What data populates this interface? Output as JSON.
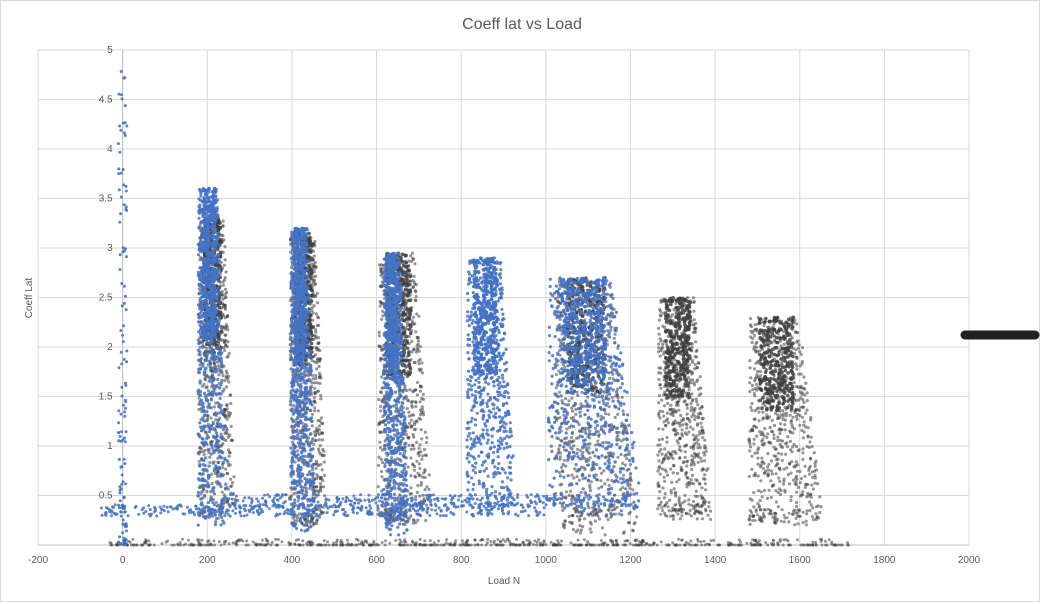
{
  "chart_data": {
    "type": "scatter",
    "title": "Coeff lat vs Load",
    "xlabel": "Load N",
    "ylabel": "Coeff Lat",
    "xlim": [
      -200,
      2000
    ],
    "ylim": [
      0,
      5
    ],
    "xticks": [
      "-200",
      "0",
      "200",
      "400",
      "600",
      "800",
      "1000",
      "1200",
      "1400",
      "1600",
      "1800",
      "2000"
    ],
    "yticks": [
      "0.5",
      "1",
      "1.5",
      "2",
      "2.5",
      "3",
      "3.5",
      "4",
      "4.5",
      "5"
    ],
    "grid": true,
    "legend": "right",
    "series": [
      {
        "color": "#404040",
        "opacity": 0.55,
        "clusters": [
          {
            "x": [
              170,
              260
            ],
            "y": [
              0.25,
              3.3
            ],
            "dense": [
              0.1,
              0.6
            ]
          },
          {
            "x": [
              385,
              475
            ],
            "y": [
              0.2,
              3.15
            ],
            "dense": [
              0.1,
              0.55
            ]
          },
          {
            "x": [
              590,
              720
            ],
            "y": [
              0.2,
              2.95
            ],
            "dense": [
              0.15,
              0.6
            ]
          },
          {
            "x": [
              1000,
              1200
            ],
            "y": [
              0.1,
              2.7
            ],
            "dense": [
              0.1,
              0.55
            ]
          },
          {
            "x": [
              1250,
              1380
            ],
            "y": [
              0.25,
              2.5
            ],
            "dense": [
              0.0,
              0.2
            ]
          },
          {
            "x": [
              1460,
              1640
            ],
            "y": [
              0.2,
              2.3
            ],
            "dense": [
              0.0,
              0.2
            ]
          }
        ],
        "bands": [
          {
            "x": [
              -30,
              1720
            ],
            "y": 0.0
          },
          {
            "x": [
              1060,
              1170
            ],
            "y": 0.35
          },
          {
            "x": [
              1270,
              1370
            ],
            "y": 0.35
          },
          {
            "x": [
              1480,
              1600
            ],
            "y": 0.3
          },
          {
            "x": [
              400,
              460
            ],
            "y": 0.25
          },
          {
            "x": [
              610,
              680
            ],
            "y": 0.3
          }
        ]
      },
      {
        "color": "#4472c4",
        "opacity": 0.85,
        "clusters": [
          {
            "x": [
              170,
              240
            ],
            "y": [
              0.2,
              3.6
            ],
            "dense": [
              0.0,
              0.3
            ]
          },
          {
            "x": [
              390,
              450
            ],
            "y": [
              0.1,
              3.2
            ],
            "dense": [
              0.0,
              0.3
            ]
          },
          {
            "x": [
              610,
              670
            ],
            "y": [
              0.1,
              2.95
            ],
            "dense": [
              0.0,
              0.3
            ]
          },
          {
            "x": [
              800,
              920
            ],
            "y": [
              0.3,
              2.9
            ],
            "dense": [
              0.0,
              0.4
            ]
          },
          {
            "x": [
              980,
              1210
            ],
            "y": [
              0.3,
              2.7
            ],
            "dense": [
              0.0,
              0.3
            ]
          }
        ],
        "spike": {
          "x": [
            -10,
            10
          ],
          "y": [
            0,
            4.85
          ]
        },
        "bands": [
          {
            "x": [
              -50,
              1000
            ],
            "y": 0.35
          },
          {
            "x": [
              250,
              1200
            ],
            "y": 0.45
          }
        ]
      }
    ]
  }
}
